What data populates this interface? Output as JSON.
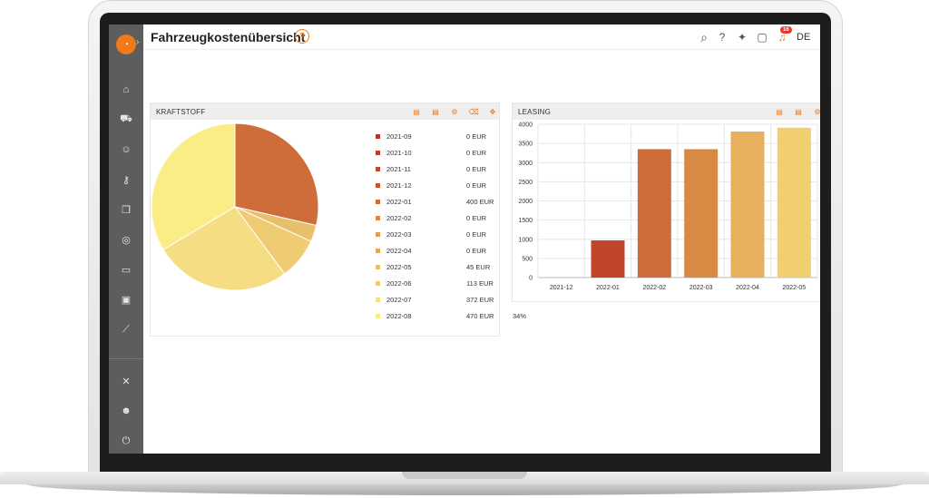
{
  "header": {
    "title": "Fahrzeugkostenübersicht",
    "help_symbol": "?",
    "notifications_count": "16",
    "language": "DE",
    "icons": [
      "search-icon",
      "help-icon",
      "lightbulb-icon",
      "chat-icon",
      "bell-icon"
    ]
  },
  "sidebar": {
    "items": [
      "home-icon",
      "car-icon",
      "users-icon",
      "key-icon",
      "documents-icon",
      "compass-icon",
      "card-icon",
      "contact-icon",
      "chart-icon",
      "tools-icon",
      "user-settings-icon",
      "power-icon"
    ]
  },
  "colors": {
    "accent": "#f07a1a",
    "sidebar": "#5d5d5d",
    "palette": [
      "#b5322b",
      "#b83f2b",
      "#bc4a2e",
      "#c0552f",
      "#cf6d3a",
      "#d88a45",
      "#dd9b50",
      "#e1a95a",
      "#e8bf6a",
      "#efcc74",
      "#f4dd82",
      "#fbed86"
    ]
  },
  "kraftstoff": {
    "title": "KRAFTSTOFF",
    "actions": [
      "pdf-icon",
      "excel-icon",
      "settings-icon",
      "delete-icon",
      "move-icon"
    ],
    "chart_data": {
      "type": "pie",
      "slices": [
        {
          "label": "2021-09",
          "amount": "0 EUR",
          "percent": "0%",
          "value": 0
        },
        {
          "label": "2021-10",
          "amount": "0 EUR",
          "percent": "0%",
          "value": 0
        },
        {
          "label": "2021-11",
          "amount": "0 EUR",
          "percent": "0%",
          "value": 0
        },
        {
          "label": "2021-12",
          "amount": "0 EUR",
          "percent": "0%",
          "value": 0
        },
        {
          "label": "2022-01",
          "amount": "400 EUR",
          "percent": "29%",
          "value": 400
        },
        {
          "label": "2022-02",
          "amount": "0 EUR",
          "percent": "0%",
          "value": 0
        },
        {
          "label": "2022-03",
          "amount": "0 EUR",
          "percent": "0%",
          "value": 0
        },
        {
          "label": "2022-04",
          "amount": "0 EUR",
          "percent": "0%",
          "value": 0
        },
        {
          "label": "2022-05",
          "amount": "45 EUR",
          "percent": "3%",
          "value": 45
        },
        {
          "label": "2022-06",
          "amount": "113 EUR",
          "percent": "8%",
          "value": 113
        },
        {
          "label": "2022-07",
          "amount": "372 EUR",
          "percent": "27%",
          "value": 372
        },
        {
          "label": "2022-08",
          "amount": "470 EUR",
          "percent": "34%",
          "value": 470
        }
      ]
    }
  },
  "leasing": {
    "title": "LEASING",
    "actions": [
      "pdf-icon",
      "excel-icon",
      "settings-icon"
    ],
    "chart_data": {
      "type": "bar",
      "categories": [
        "2021-12",
        "2022-01",
        "2022-02",
        "2022-03",
        "2022-04",
        "2022-05"
      ],
      "values": [
        0,
        970,
        3350,
        3350,
        3810,
        3910
      ],
      "colors": [
        "#b5322b",
        "#c0452c",
        "#cf6d3a",
        "#d88a45",
        "#e6b05c",
        "#f2cf6e"
      ],
      "ylim": [
        0,
        4000
      ],
      "yticks": [
        "0",
        "500",
        "1000",
        "1500",
        "2000",
        "2500",
        "3000",
        "3500",
        "4000"
      ],
      "grid": true
    }
  }
}
